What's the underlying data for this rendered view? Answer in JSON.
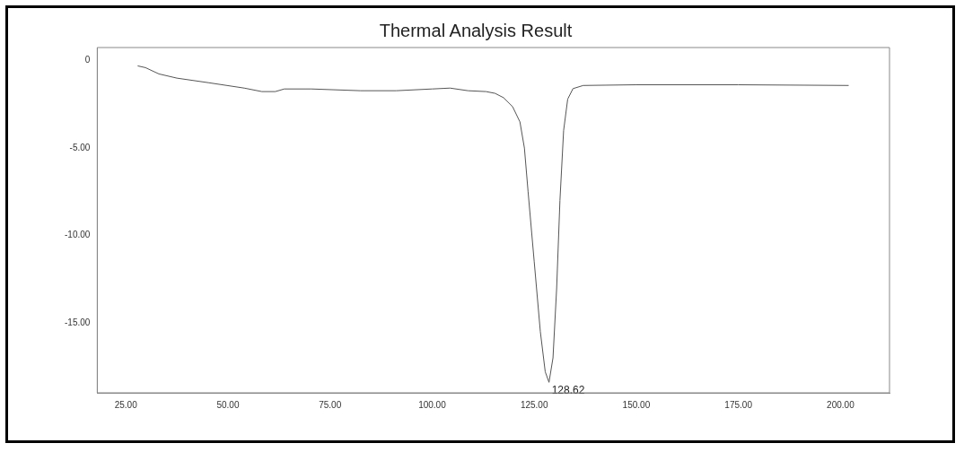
{
  "chart_data": {
    "type": "line",
    "title": "Thermal Analysis Result",
    "series": [
      {
        "color": "#555555",
        "x": [
          27.9,
          29.8,
          33.1,
          37.5,
          45.2,
          54,
          58.3,
          61.6,
          63.8,
          70.4,
          82.5,
          91.2,
          100,
          104.4,
          108.8,
          113.2,
          115.4,
          117.5,
          119.7,
          121.5,
          122.6,
          123.5,
          125,
          126.5,
          127.7,
          128.62,
          129.6,
          130.5,
          131.3,
          132.2,
          133.2,
          134.5,
          137,
          150,
          175,
          202
        ],
        "values": [
          -0.3,
          -0.4,
          -0.76,
          -1.0,
          -1.26,
          -1.57,
          -1.77,
          -1.77,
          -1.62,
          -1.62,
          -1.72,
          -1.72,
          -1.62,
          -1.57,
          -1.72,
          -1.77,
          -1.87,
          -2.12,
          -2.63,
          -3.5,
          -5.0,
          -7.5,
          -11.5,
          -15.5,
          -17.8,
          -18.4,
          -17,
          -13,
          -8,
          -4,
          -2.2,
          -1.6,
          -1.42,
          -1.38,
          -1.38,
          -1.42
        ]
      }
    ],
    "xlim": [
      18,
      212
    ],
    "xticks": [
      {
        "value": 25,
        "label": "25.00"
      },
      {
        "value": 50,
        "label": "50.00"
      },
      {
        "value": 75,
        "label": "75.00"
      },
      {
        "value": 100,
        "label": "100.00"
      },
      {
        "value": 125,
        "label": "125.00"
      },
      {
        "value": 150,
        "label": "150.00"
      },
      {
        "value": 175,
        "label": "175.00"
      },
      {
        "value": 200,
        "label": "200.00"
      }
    ],
    "ylim": [
      -19,
      0.75
    ],
    "yticks": [
      0,
      {
        "value": -5,
        "label": "-5.00"
      },
      {
        "value": -10,
        "label": "-10.00"
      },
      {
        "value": -15,
        "label": "-15.00"
      }
    ],
    "annotations": [
      {
        "text": "128.62",
        "x": 128.62,
        "y": -18.4
      }
    ],
    "grid": false,
    "legend": false,
    "marker": "none",
    "line_style": "solid"
  }
}
